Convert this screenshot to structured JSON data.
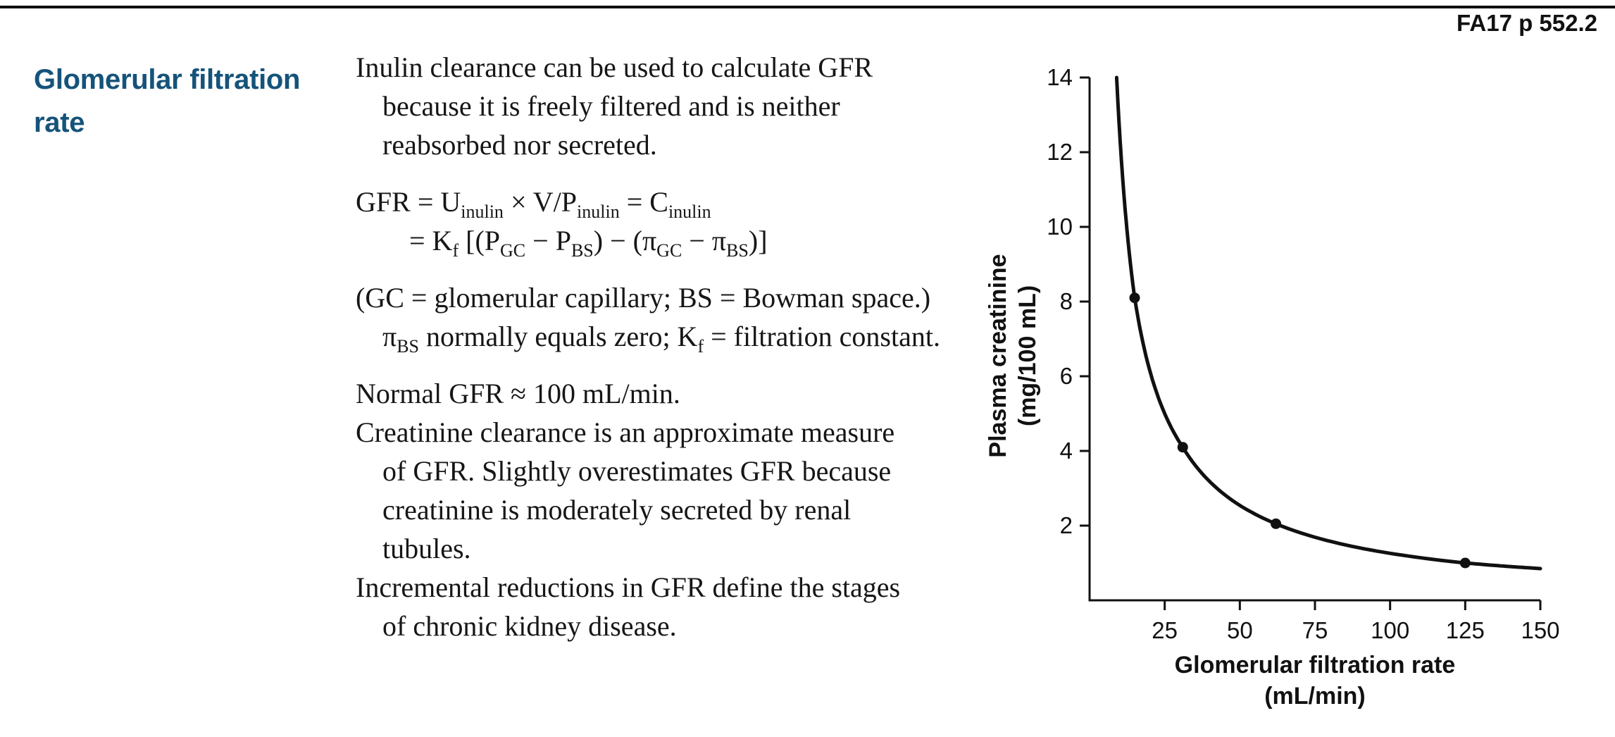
{
  "page_ref": "FA17 p 552.2",
  "heading": "Glomerular filtration rate",
  "colors": {
    "heading": "#15537a",
    "text": "#161616",
    "rule": "#101010",
    "chart_ink": "#111111"
  },
  "body": {
    "paragraphs": [
      {
        "lines": [
          {
            "text": "Inulin clearance can be used to calculate GFR",
            "indent": 0
          },
          {
            "text": "because it is freely filtered and is neither",
            "indent": 1
          },
          {
            "text": "reabsorbed nor secreted.",
            "indent": 1
          }
        ]
      },
      {
        "lines": [
          {
            "text": "GFR = U_[inulin] × V/P_[inulin] = C_[inulin]",
            "indent": 0
          },
          {
            "text": "= K_[f] [(P_[GC] − P_[BS]) − (π_[GC] − π_[BS])]",
            "indent": 2
          }
        ]
      },
      {
        "lines": [
          {
            "text": "(GC = glomerular capillary; BS = Bowman space.)",
            "indent": 0
          },
          {
            "text": "π_[BS] normally equals zero; K_[f] = filtration constant.",
            "indent": 1
          }
        ]
      },
      {
        "lines": [
          {
            "text": "Normal GFR ≈ 100 mL/min.",
            "indent": 0
          },
          {
            "text": "Creatinine clearance is an approximate measure",
            "indent": 0
          },
          {
            "text": "of GFR. Slightly overestimates GFR because",
            "indent": 1
          },
          {
            "text": "creatinine is moderately secreted by renal",
            "indent": 1
          },
          {
            "text": "tubules.",
            "indent": 1
          },
          {
            "text": "Incremental reductions in GFR define the stages",
            "indent": 0
          },
          {
            "text": "of chronic kidney disease.",
            "indent": 1
          }
        ]
      }
    ]
  },
  "chart_data": {
    "type": "line",
    "title": "",
    "xlabel_lines": [
      "Glomerular filtration rate",
      "(mL/min)"
    ],
    "ylabel_lines": [
      "Plasma creatinine",
      "(mg/100 mL)"
    ],
    "xlim": [
      0,
      150
    ],
    "ylim": [
      0,
      14
    ],
    "x_ticks": [
      25,
      50,
      75,
      100,
      125,
      150
    ],
    "y_ticks": [
      2,
      4,
      6,
      8,
      10,
      12,
      14
    ],
    "grid": false,
    "legend": "none",
    "relationship": "inverse: plasma creatinine doubles as GFR halves (creatinine ≈ 125 / GFR)",
    "points": [
      {
        "gfr": 15,
        "creatinine": 8.1
      },
      {
        "gfr": 31,
        "creatinine": 4.1
      },
      {
        "gfr": 62,
        "creatinine": 2.05
      },
      {
        "gfr": 125,
        "creatinine": 1.0
      }
    ],
    "curve_extent": {
      "start": {
        "gfr": 9,
        "creatinine": 14
      },
      "end": {
        "gfr": 150,
        "creatinine": 0.85
      }
    }
  }
}
